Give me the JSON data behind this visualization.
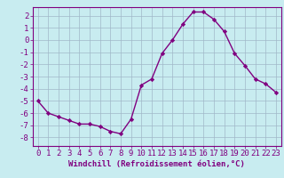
{
  "x": [
    0,
    1,
    2,
    3,
    4,
    5,
    6,
    7,
    8,
    9,
    10,
    11,
    12,
    13,
    14,
    15,
    16,
    17,
    18,
    19,
    20,
    21,
    22,
    23
  ],
  "y": [
    -5.0,
    -6.0,
    -6.3,
    -6.6,
    -6.9,
    -6.9,
    -7.1,
    -7.5,
    -7.7,
    -6.5,
    -3.7,
    -3.2,
    -1.1,
    0.0,
    1.3,
    2.3,
    2.3,
    1.7,
    0.7,
    -1.1,
    -2.1,
    -3.2,
    -3.6,
    -4.3
  ],
  "line_color": "#800080",
  "marker": "D",
  "marker_size": 2.2,
  "line_width": 1.0,
  "bg_color": "#c8ecf0",
  "grid_color": "#a0b8c8",
  "xlabel": "Windchill (Refroidissement éolien,°C)",
  "xlabel_fontsize": 6.5,
  "xtick_labels": [
    "0",
    "1",
    "2",
    "3",
    "4",
    "5",
    "6",
    "7",
    "8",
    "9",
    "10",
    "11",
    "12",
    "13",
    "14",
    "15",
    "16",
    "17",
    "18",
    "19",
    "20",
    "21",
    "22",
    "23"
  ],
  "ytick_values": [
    -8,
    -7,
    -6,
    -5,
    -4,
    -3,
    -2,
    -1,
    0,
    1,
    2
  ],
  "ylim": [
    -8.7,
    2.7
  ],
  "xlim": [
    -0.5,
    23.5
  ],
  "tick_fontsize": 6.5,
  "spine_color": "#800080"
}
